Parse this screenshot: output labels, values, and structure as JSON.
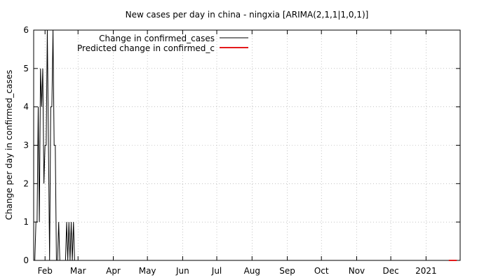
{
  "chart_data": {
    "type": "line",
    "title": "New cases per day in china - ningxia [ARIMA(2,1,1|1,0,1)]",
    "xlabel": "",
    "ylabel": "Change per day in confirmed_cases",
    "ylim": [
      0,
      6
    ],
    "xlim": [
      "2020-01-22",
      "2021-01-31"
    ],
    "yticks": [
      0,
      1,
      2,
      3,
      4,
      5,
      6
    ],
    "xticks": [
      {
        "label": "Feb",
        "date": "2020-02-01"
      },
      {
        "label": "Mar",
        "date": "2020-03-01"
      },
      {
        "label": "Apr",
        "date": "2020-04-01"
      },
      {
        "label": "May",
        "date": "2020-05-01"
      },
      {
        "label": "Jun",
        "date": "2020-06-01"
      },
      {
        "label": "Jul",
        "date": "2020-07-01"
      },
      {
        "label": "Aug",
        "date": "2020-08-01"
      },
      {
        "label": "Sep",
        "date": "2020-09-01"
      },
      {
        "label": "Oct",
        "date": "2020-10-01"
      },
      {
        "label": "Nov",
        "date": "2020-11-01"
      },
      {
        "label": "Dec",
        "date": "2020-12-01"
      },
      {
        "label": "2021",
        "date": "2021-01-01"
      }
    ],
    "legend_position": "top-left",
    "grid": true,
    "series": [
      {
        "name": "Change in confirmed_cases",
        "color": "#000000",
        "points": [
          [
            "2020-01-23",
            0
          ],
          [
            "2020-01-24",
            1
          ],
          [
            "2020-01-25",
            1
          ],
          [
            "2020-01-26",
            4
          ],
          [
            "2020-01-27",
            1
          ],
          [
            "2020-01-28",
            5
          ],
          [
            "2020-01-29",
            4
          ],
          [
            "2020-01-30",
            5
          ],
          [
            "2020-01-31",
            2
          ],
          [
            "2020-02-01",
            3
          ],
          [
            "2020-02-02",
            3
          ],
          [
            "2020-02-03",
            6
          ],
          [
            "2020-02-04",
            3
          ],
          [
            "2020-02-05",
            0
          ],
          [
            "2020-02-06",
            4
          ],
          [
            "2020-02-07",
            4
          ],
          [
            "2020-02-08",
            6
          ],
          [
            "2020-02-09",
            3
          ],
          [
            "2020-02-10",
            3
          ],
          [
            "2020-02-11",
            0
          ],
          [
            "2020-02-12",
            0
          ],
          [
            "2020-02-13",
            1
          ],
          [
            "2020-02-14",
            0
          ],
          [
            "2020-02-15",
            0
          ],
          [
            "2020-02-16",
            0
          ],
          [
            "2020-02-17",
            0
          ],
          [
            "2020-02-18",
            0
          ],
          [
            "2020-02-19",
            0
          ],
          [
            "2020-02-20",
            1
          ],
          [
            "2020-02-21",
            0
          ],
          [
            "2020-02-22",
            1
          ],
          [
            "2020-02-23",
            0
          ],
          [
            "2020-02-24",
            1
          ],
          [
            "2020-02-25",
            0
          ],
          [
            "2020-02-26",
            1
          ],
          [
            "2020-02-27",
            0
          ],
          [
            "2020-02-28",
            0
          ],
          [
            "2020-03-05",
            0
          ],
          [
            "2021-01-26",
            0
          ]
        ]
      },
      {
        "name": "Predicted change in confirmed_c",
        "color": "#e41a1c",
        "points": [
          [
            "2021-01-21",
            0
          ],
          [
            "2021-01-28",
            0
          ]
        ]
      }
    ]
  }
}
